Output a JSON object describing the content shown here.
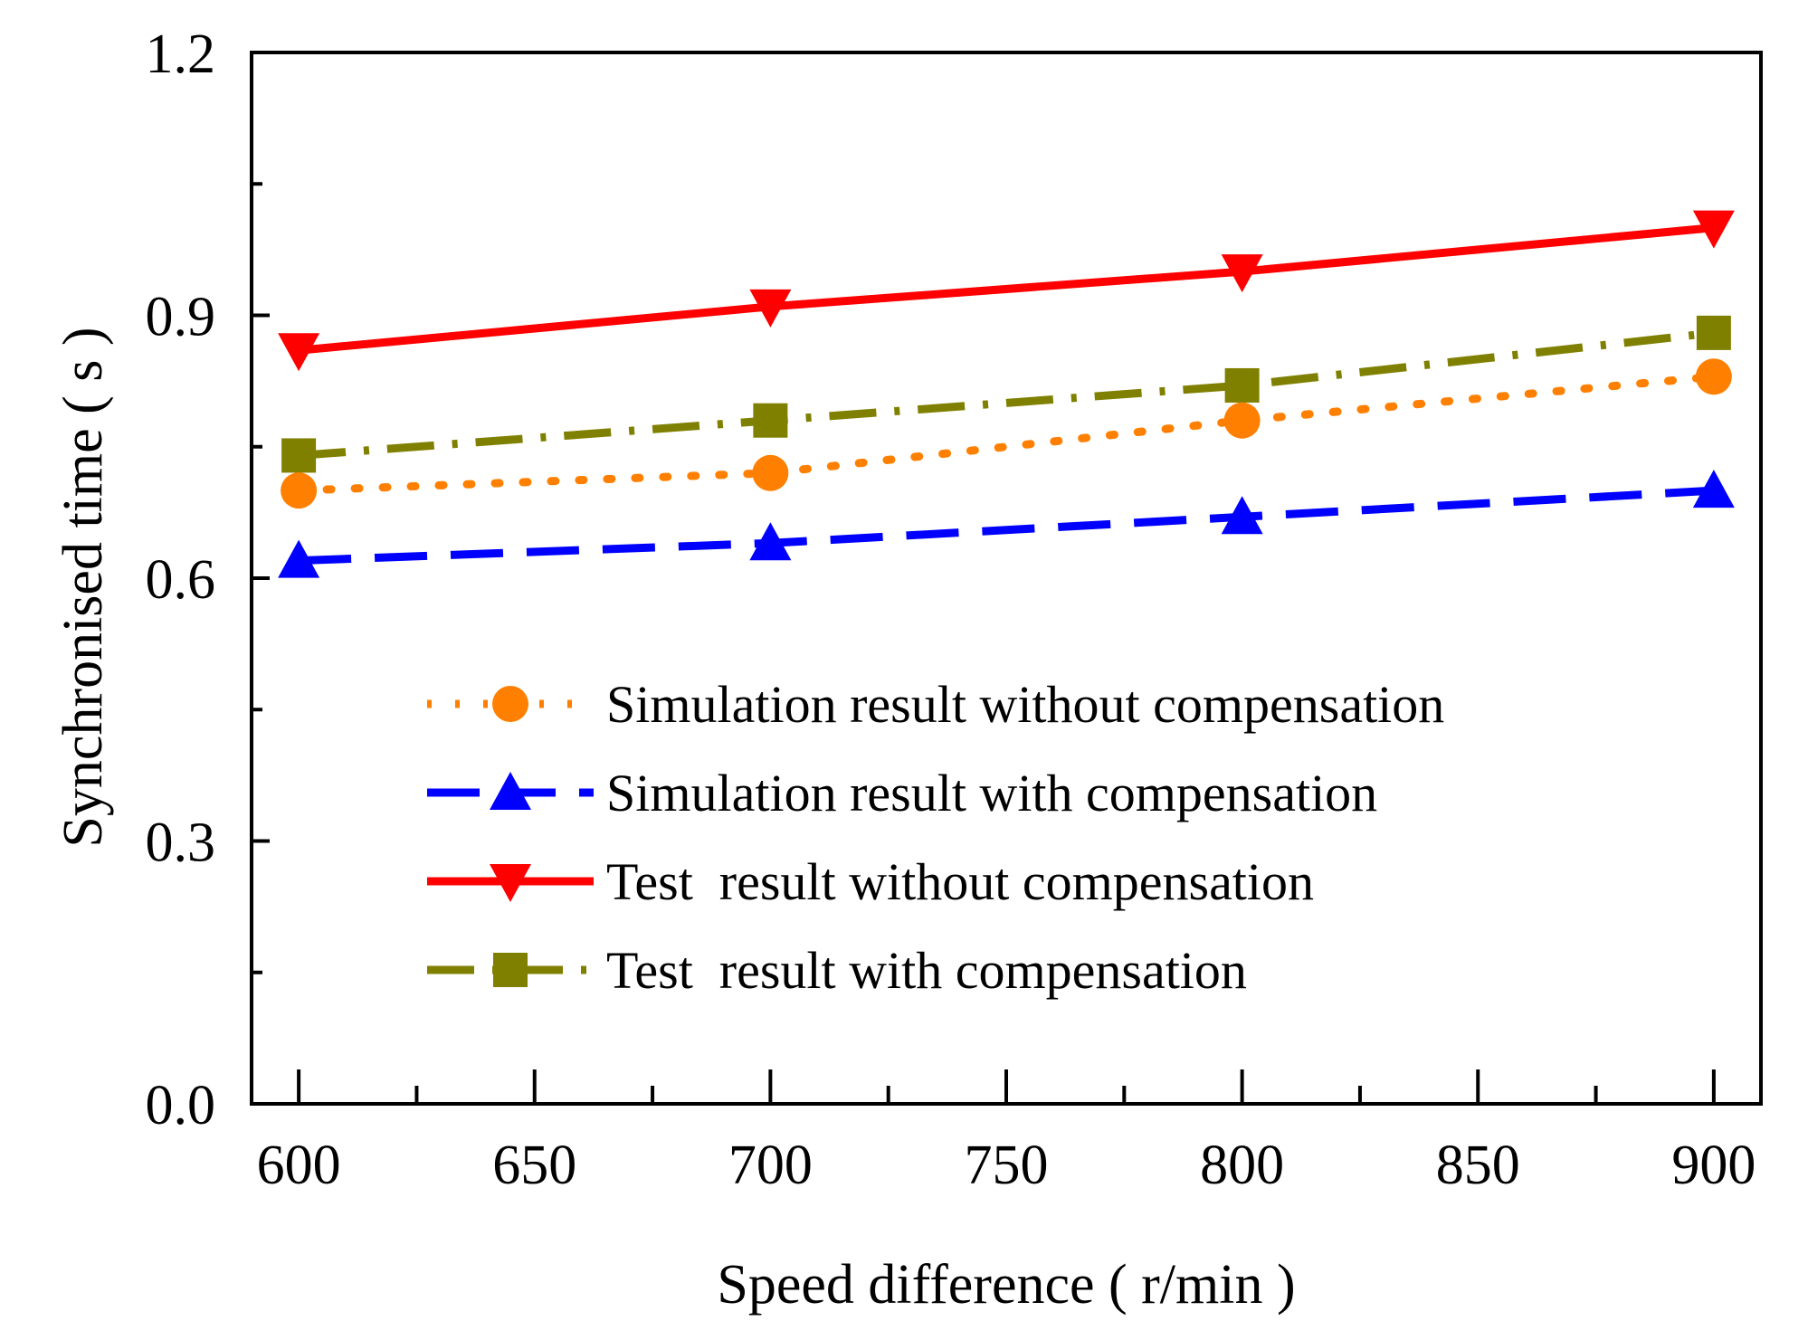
{
  "chart_data": {
    "type": "line",
    "title": "",
    "xlabel": "Speed difference ( r/min )",
    "ylabel": "Synchronised time ( s )",
    "xlim": [
      590,
      910
    ],
    "ylim": [
      0.0,
      1.2
    ],
    "xticks": [
      600,
      650,
      700,
      750,
      800,
      850,
      900
    ],
    "xtick_labels": [
      "600",
      "650",
      "700",
      "750",
      "800",
      "850",
      "900"
    ],
    "xminor": [
      625,
      675,
      725,
      775,
      825,
      875
    ],
    "yticks": [
      0.0,
      0.3,
      0.6,
      0.9,
      1.2
    ],
    "ytick_labels": [
      "0.0",
      "0.3",
      "0.6",
      "0.9",
      "1.2"
    ],
    "yminor": [
      0.15,
      0.45,
      0.75,
      1.05
    ],
    "grid": false,
    "legend_position": "lower-right",
    "x": [
      600,
      700,
      800,
      900
    ],
    "series": [
      {
        "name": "Simulation result without compensation",
        "values": [
          0.7,
          0.72,
          0.78,
          0.83
        ],
        "color": "#ff8000",
        "dash": "dot",
        "marker": "circle"
      },
      {
        "name": "Simulation result with compensation",
        "values": [
          0.62,
          0.64,
          0.67,
          0.7
        ],
        "color": "#0000ff",
        "dash": "dash",
        "marker": "triangle-up"
      },
      {
        "name": "Test  result without compensation",
        "values": [
          0.86,
          0.91,
          0.95,
          1.0
        ],
        "color": "#ff0000",
        "dash": "solid",
        "marker": "triangle-down"
      },
      {
        "name": "Test  result with compensation",
        "values": [
          0.74,
          0.78,
          0.82,
          0.88
        ],
        "color": "#808000",
        "dash": "dashdot",
        "marker": "square"
      }
    ]
  }
}
